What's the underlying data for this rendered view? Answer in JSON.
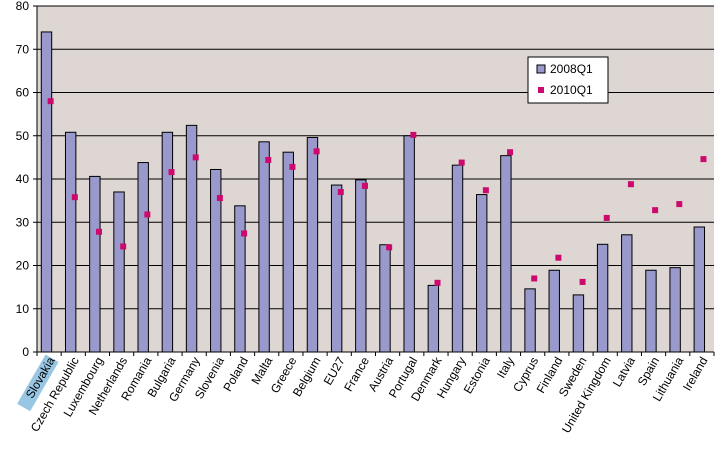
{
  "chart_data": {
    "type": "bar",
    "categories": [
      "Slovakia",
      "Czech Republic",
      "Luxembourg",
      "Netherlands",
      "Romania",
      "Bulgaria",
      "Germany",
      "Slovenia",
      "Poland",
      "Malta",
      "Greece",
      "Belgium",
      "EU27",
      "France",
      "Austria",
      "Portugal",
      "Denmark",
      "Hungary",
      "Estonia",
      "Italy",
      "Cyprus",
      "Finland",
      "Sweden",
      "United Kingdom",
      "Latvia",
      "Spain",
      "Lithuania",
      "Ireland"
    ],
    "series": [
      {
        "name": "2008Q1",
        "mark": "bar",
        "values": [
          74.0,
          50.8,
          40.6,
          37.0,
          43.8,
          50.8,
          52.4,
          42.2,
          33.8,
          48.6,
          46.2,
          49.6,
          38.6,
          39.8,
          24.8,
          50.0,
          15.4,
          43.2,
          36.4,
          45.4,
          14.6,
          18.9,
          13.2,
          24.9,
          27.1,
          18.9,
          19.5,
          28.9
        ]
      },
      {
        "name": "2010Q1",
        "mark": "point",
        "values": [
          58.0,
          35.8,
          27.8,
          24.4,
          31.8,
          41.6,
          45.0,
          35.6,
          27.4,
          44.4,
          42.8,
          46.4,
          37.0,
          38.4,
          24.2,
          50.2,
          16.0,
          43.8,
          37.4,
          46.2,
          17.0,
          21.8,
          16.2,
          31.0,
          38.8,
          32.8,
          34.2,
          44.6
        ]
      }
    ],
    "yticks": [
      "0",
      "10",
      "20",
      "30",
      "40",
      "50",
      "60",
      "70",
      "80"
    ],
    "ylim": [
      0,
      80
    ],
    "grid": true,
    "legend": "top-right",
    "colors": {
      "bar": "#9999cc",
      "bar_stroke": "#000000",
      "point": "#cc0a6e",
      "plot_bg": "#ddd6d2",
      "highlight": "#99c7e3"
    },
    "highlighted_category": "Slovakia"
  }
}
